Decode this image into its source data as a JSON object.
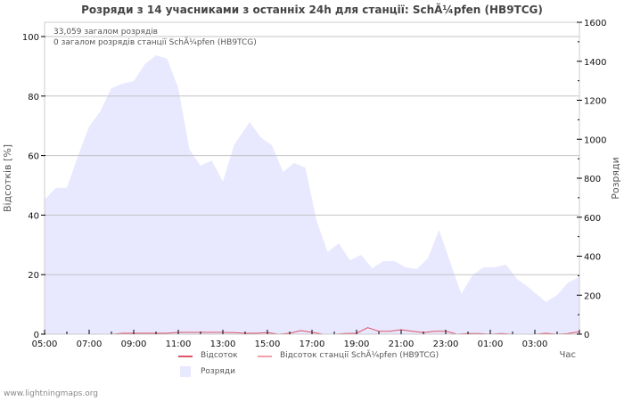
{
  "title": "Розряди з 14 учасниками з останніх 24h для станції: SchÃ¼pfen (HB9TCG)",
  "info_lines": [
    "33,059 загалом розрядів",
    "0 загалом розрядів станції SchÃ¼pfen (HB9TCG)"
  ],
  "watermark": "www.lightningmaps.org",
  "legend": {
    "items": [
      {
        "label": "Відсоток",
        "color": "#dd5566",
        "kind": "line"
      },
      {
        "label": "Відсоток станції SchÃ¼pfen (HB9TCG)",
        "color": "#f4a0a8",
        "kind": "line"
      },
      {
        "label": "Розряди",
        "color": "#e8e8ff",
        "kind": "area"
      }
    ]
  },
  "chart_data": {
    "type": "area",
    "title": "Розряди з 14 учасниками з останніх 24h для станції: SchÃ¼pfen (HB9TCG)",
    "xlabel": "Час",
    "ylabel_left": "Відсотків   [%]",
    "ylabel_right": "Розряди",
    "x_ticks": [
      "05:00",
      "07:00",
      "09:00",
      "11:00",
      "13:00",
      "15:00",
      "17:00",
      "19:00",
      "21:00",
      "23:00",
      "01:00",
      "03:00"
    ],
    "y_left_ticks": [
      0,
      20,
      40,
      60,
      80,
      100
    ],
    "y_left_range": [
      0,
      105
    ],
    "y_right_ticks": [
      0,
      200,
      400,
      600,
      800,
      1000,
      1200,
      1400,
      1600
    ],
    "y_right_range": [
      0,
      1600
    ],
    "grid": true,
    "series": [
      {
        "name": "Розряди",
        "axis": "right",
        "type": "area",
        "color": "#e8e8ff",
        "x_hours_from_0500": [
          0,
          0.5,
          1,
          1.5,
          2,
          2.5,
          3,
          3.5,
          4,
          4.5,
          5,
          5.5,
          6,
          6.5,
          7,
          7.5,
          8,
          8.5,
          9.2,
          9.7,
          10.2,
          10.7,
          11.2,
          11.7,
          12.2,
          12.7,
          13.2,
          13.7,
          14.2,
          14.7,
          15.2,
          15.7,
          16.2,
          16.7,
          17.2,
          17.7,
          18.2,
          18.7,
          19.2,
          19.7,
          20.2,
          20.7,
          21.2,
          21.7,
          22.5,
          23,
          23.5,
          24
        ],
        "values": [
          690,
          750,
          750,
          914,
          1065,
          1143,
          1262,
          1285,
          1298,
          1385,
          1431,
          1413,
          1262,
          947,
          864,
          891,
          782,
          969,
          1088,
          1010,
          969,
          832,
          878,
          855,
          585,
          421,
          466,
          379,
          407,
          338,
          375,
          375,
          343,
          334,
          389,
          535,
          370,
          206,
          302,
          343,
          343,
          357,
          283,
          242,
          165,
          201,
          265,
          293
        ]
      },
      {
        "name": "Відсоток",
        "axis": "left",
        "type": "line",
        "color": "#dd5566",
        "x_hours_from_0500": [
          0,
          3,
          3.5,
          4,
          5.5,
          6,
          6.5,
          7,
          7.5,
          8,
          8.5,
          9,
          9.5,
          10,
          10.5,
          11,
          11.5,
          12,
          12.5,
          13,
          13.5,
          14,
          14.5,
          15,
          15.5,
          16,
          16.5,
          17,
          17.5,
          18,
          18.5,
          19,
          19.5,
          20,
          20.5,
          21,
          21.5,
          22,
          22.5,
          23,
          23.5,
          24
        ],
        "values": [
          0,
          0,
          0.3,
          0.3,
          0.3,
          0.6,
          0.6,
          0.6,
          0.6,
          0.6,
          0.5,
          0.3,
          0.3,
          0.5,
          0,
          0.3,
          1.2,
          0.6,
          0,
          0,
          0.2,
          0.3,
          2.2,
          1,
          1,
          1.5,
          1,
          0.5,
          1,
          1,
          0,
          0.2,
          0.2,
          0,
          0.2,
          0,
          0,
          0,
          0.3,
          0,
          0.2,
          0.8
        ]
      },
      {
        "name": "Відсоток станції SchÃ¼pfen (HB9TCG)",
        "axis": "left",
        "type": "line",
        "color": "#f4a0a8",
        "values": [
          0
        ]
      }
    ]
  }
}
